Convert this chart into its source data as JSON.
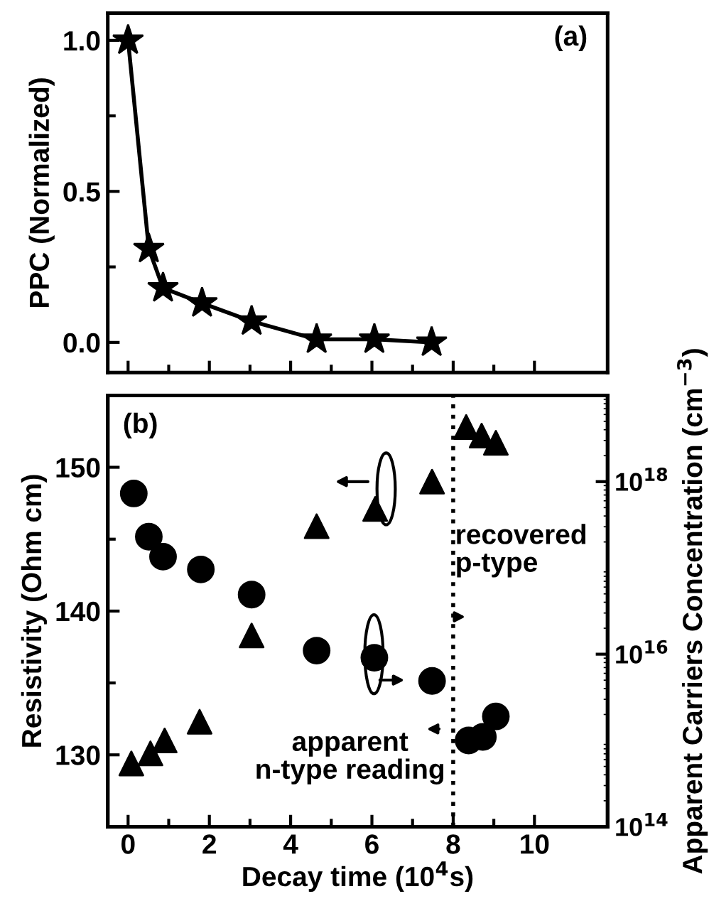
{
  "chart_data": [
    {
      "type": "line",
      "ylabel": "PPC (Normalized)",
      "xlim": [
        -0.5,
        11.8
      ],
      "xticks": [
        0,
        2,
        4,
        6,
        8,
        10
      ],
      "ylim": [
        -0.1,
        1.09
      ],
      "yticks": [
        {
          "value": 0,
          "label": "0.0"
        },
        {
          "value": 0.5,
          "label": "0.5"
        },
        {
          "value": 1,
          "label": "1.0"
        }
      ],
      "tick_labels": "y",
      "grid": false,
      "marker": "star",
      "line_style": "solid",
      "annotations": [
        "(a)"
      ],
      "series": [
        {
          "color": "#000000",
          "x": [
            0.0,
            0.51,
            0.86,
            1.82,
            3.04,
            4.64,
            6.06,
            7.47
          ],
          "values": [
            1.0,
            0.31,
            0.18,
            0.13,
            0.07,
            0.01,
            0.01,
            0.0
          ]
        }
      ]
    },
    {
      "type": "scatter",
      "xlabel": "Decay time (10$^{4}$s)",
      "ylabel": "Resistivity (Ohm cm)",
      "y2label": "Apparent Carriers Concentration (cm$^{−3}$)",
      "xlim": [
        -0.5,
        11.8
      ],
      "xticks": [
        0,
        2,
        4,
        6,
        8,
        10
      ],
      "ylim": [
        125,
        155
      ],
      "yticks": [
        130,
        140,
        150
      ],
      "log": "y2",
      "y2lim": [
        100000000000000.0,
        1e+19
      ],
      "y2ticks": [
        {
          "value": 100000000000000.0,
          "label": "10$^{14}$"
        },
        {
          "value": 1e+16,
          "label": "10$^{16}$"
        },
        {
          "value": 1e+18,
          "label": "10$^{18}$"
        }
      ],
      "grid": false,
      "ref_lines": [
        {
          "axis": "x",
          "value": 8,
          "line_style": "dotted",
          "color": "#000000"
        }
      ],
      "annotations": [
        "(b)",
        "recovered\np-type",
        "apparent\nn-type reading"
      ],
      "series": [
        {
          "color": "#000000",
          "marker": "triangle",
          "x": [
            0.08,
            0.55,
            0.9,
            1.76,
            3.04,
            4.64,
            6.08,
            7.48,
            8.32,
            8.7,
            9.05
          ],
          "values": [
            129.4,
            130.1,
            131.0,
            132.3,
            138.3,
            145.9,
            147.1,
            149.0,
            152.8,
            152.2,
            151.7
          ]
        },
        {
          "color": "#000000",
          "marker": "circle",
          "axis": "y2",
          "x": [
            0.14,
            0.51,
            0.86,
            1.79,
            3.04,
            4.64,
            6.06,
            7.48,
            8.38,
            8.73,
            9.05
          ],
          "values": [
            7.3e+17,
            2.3e+17,
            1.35e+17,
            9.6e+16,
            4.9e+16,
            1.1e+16,
            9100000000000000.0,
            4900000000000000.0,
            1000000000000000.0,
            1100000000000000.0,
            1900000000000000.0
          ]
        }
      ]
    }
  ]
}
